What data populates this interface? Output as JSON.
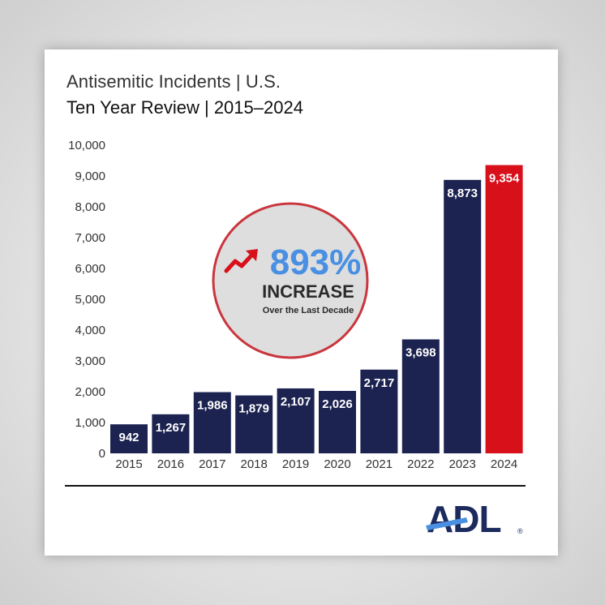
{
  "title": "Antisemitic Incidents | U.S.",
  "subtitle": "Ten Year Review | 2015–2024",
  "callout": {
    "percent": "893%",
    "word": "INCREASE",
    "caption": "Over the Last Decade"
  },
  "logo": {
    "text": "ADL",
    "mark": "®"
  },
  "colors": {
    "bar": "#1c2350",
    "highlight": "#d7101a",
    "percent": "#4a90e2",
    "arrow": "#d7101a",
    "circle_fill": "#dedede",
    "circle_stroke": "#c9363e"
  },
  "chart_data": {
    "type": "bar",
    "title": "Antisemitic Incidents | U.S.",
    "subtitle": "Ten Year Review | 2015–2024",
    "categories": [
      "2015",
      "2016",
      "2017",
      "2018",
      "2019",
      "2020",
      "2021",
      "2022",
      "2023",
      "2024"
    ],
    "values": [
      942,
      1267,
      1986,
      1879,
      2107,
      2026,
      2717,
      3698,
      8873,
      9354
    ],
    "value_labels": [
      "942",
      "1,267",
      "1,986",
      "1,879",
      "2,107",
      "2,026",
      "2,717",
      "3,698",
      "8,873",
      "9,354"
    ],
    "highlight_index": 9,
    "ylim": [
      0,
      10000
    ],
    "yticks": [
      0,
      1000,
      2000,
      3000,
      4000,
      5000,
      6000,
      7000,
      8000,
      9000,
      10000
    ],
    "ytick_labels": [
      "0",
      "1,000",
      "2,000",
      "3,000",
      "4,000",
      "5,000",
      "6,000",
      "7,000",
      "8,000",
      "9,000",
      "10,000"
    ],
    "xlabel": "",
    "ylabel": "",
    "grid": false
  }
}
